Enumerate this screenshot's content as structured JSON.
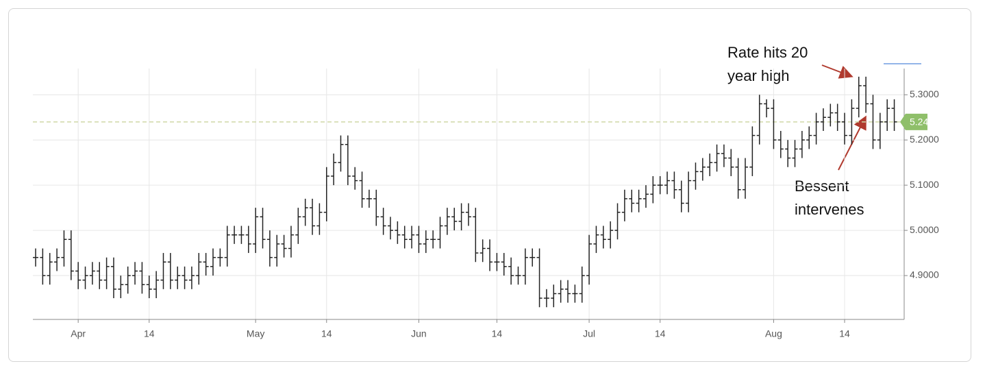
{
  "chart_data": {
    "type": "ohlc",
    "categories": [
      null,
      null,
      null,
      null,
      null,
      null,
      "Apr",
      null,
      null,
      null,
      null,
      null,
      null,
      null,
      null,
      null,
      "14",
      null,
      null,
      null,
      null,
      null,
      null,
      null,
      null,
      null,
      null,
      null,
      null,
      null,
      null,
      "May",
      null,
      null,
      null,
      null,
      null,
      null,
      null,
      null,
      null,
      "14",
      null,
      null,
      null,
      null,
      null,
      null,
      null,
      null,
      null,
      null,
      null,
      null,
      "Jun",
      null,
      null,
      null,
      null,
      null,
      null,
      null,
      null,
      null,
      null,
      "14",
      null,
      null,
      null,
      null,
      null,
      null,
      null,
      null,
      null,
      null,
      null,
      null,
      "Jul",
      null,
      null,
      null,
      null,
      null,
      null,
      null,
      null,
      null,
      "14",
      null,
      null,
      null,
      null,
      null,
      null,
      null,
      null,
      null,
      null,
      null,
      null,
      null,
      null,
      null,
      "Aug",
      null,
      null,
      null,
      null,
      null,
      null,
      null,
      null,
      null,
      "14",
      null,
      null,
      null,
      null,
      null,
      null,
      null
    ],
    "open": [
      4.94,
      4.94,
      4.9,
      4.93,
      4.94,
      4.98,
      4.91,
      4.89,
      4.9,
      4.91,
      4.89,
      4.92,
      4.87,
      4.88,
      4.9,
      4.91,
      4.88,
      4.87,
      4.89,
      4.93,
      4.89,
      4.9,
      4.89,
      4.9,
      4.93,
      4.92,
      4.94,
      4.94,
      4.99,
      4.99,
      4.99,
      4.97,
      5.03,
      4.98,
      4.94,
      4.97,
      4.96,
      4.99,
      5.03,
      5.05,
      5.01,
      5.04,
      5.12,
      5.15,
      5.19,
      5.12,
      5.11,
      5.07,
      5.07,
      5.03,
      5.01,
      5.0,
      4.99,
      4.98,
      4.99,
      4.97,
      4.98,
      4.98,
      5.01,
      5.03,
      5.02,
      5.04,
      5.03,
      4.95,
      4.96,
      4.93,
      4.93,
      4.92,
      4.9,
      4.9,
      4.94,
      4.94,
      4.85,
      4.85,
      4.86,
      4.87,
      4.86,
      4.86,
      4.9,
      4.97,
      4.99,
      4.98,
      5.0,
      5.04,
      5.07,
      5.06,
      5.07,
      5.08,
      5.1,
      5.1,
      5.11,
      5.09,
      5.06,
      5.11,
      5.13,
      5.14,
      5.15,
      5.17,
      5.16,
      5.14,
      5.09,
      5.14,
      5.21,
      5.28,
      5.27,
      5.2,
      5.18,
      5.16,
      5.18,
      5.2,
      5.21,
      5.24,
      5.25,
      5.26,
      5.24,
      5.21,
      5.27,
      5.32,
      5.28,
      5.2,
      5.24,
      5.27
    ],
    "high": [
      4.96,
      4.96,
      4.95,
      4.96,
      5.0,
      5.0,
      4.93,
      4.92,
      4.93,
      4.93,
      4.94,
      4.94,
      4.9,
      4.92,
      4.93,
      4.93,
      4.9,
      4.91,
      4.95,
      4.95,
      4.92,
      4.92,
      4.92,
      4.95,
      4.95,
      4.96,
      4.96,
      5.01,
      5.01,
      5.01,
      5.01,
      5.05,
      5.05,
      5.0,
      4.99,
      4.99,
      5.01,
      5.05,
      5.07,
      5.07,
      5.06,
      5.14,
      5.17,
      5.21,
      5.21,
      5.14,
      5.13,
      5.09,
      5.09,
      5.05,
      5.03,
      5.02,
      5.01,
      5.01,
      5.01,
      5.0,
      5.0,
      5.03,
      5.05,
      5.05,
      5.06,
      5.06,
      5.05,
      4.98,
      4.98,
      4.95,
      4.95,
      4.94,
      4.92,
      4.96,
      4.96,
      4.96,
      4.87,
      4.88,
      4.89,
      4.89,
      4.88,
      4.92,
      4.99,
      5.01,
      5.01,
      5.02,
      5.06,
      5.09,
      5.09,
      5.09,
      5.1,
      5.12,
      5.12,
      5.13,
      5.13,
      5.11,
      5.13,
      5.15,
      5.16,
      5.17,
      5.19,
      5.19,
      5.18,
      5.16,
      5.16,
      5.23,
      5.3,
      5.29,
      5.29,
      5.22,
      5.2,
      5.2,
      5.22,
      5.23,
      5.26,
      5.27,
      5.28,
      5.28,
      5.26,
      5.29,
      5.34,
      5.34,
      5.3,
      5.26,
      5.29,
      5.29
    ],
    "low": [
      4.92,
      4.88,
      4.88,
      4.91,
      4.92,
      4.89,
      4.87,
      4.87,
      4.88,
      4.87,
      4.87,
      4.85,
      4.85,
      4.86,
      4.88,
      4.86,
      4.85,
      4.85,
      4.87,
      4.87,
      4.87,
      4.87,
      4.87,
      4.88,
      4.9,
      4.9,
      4.92,
      4.92,
      4.97,
      4.97,
      4.95,
      4.95,
      4.96,
      4.92,
      4.92,
      4.94,
      4.94,
      4.97,
      5.01,
      4.99,
      4.99,
      5.02,
      5.1,
      5.13,
      5.1,
      5.09,
      5.05,
      5.05,
      5.01,
      4.99,
      4.98,
      4.97,
      4.96,
      4.96,
      4.95,
      4.95,
      4.96,
      4.96,
      4.99,
      5.0,
      5.0,
      5.01,
      4.93,
      4.93,
      4.91,
      4.91,
      4.9,
      4.88,
      4.88,
      4.88,
      4.92,
      4.83,
      4.83,
      4.83,
      4.84,
      4.84,
      4.84,
      4.84,
      4.88,
      4.95,
      4.96,
      4.96,
      4.98,
      5.02,
      5.04,
      5.04,
      5.05,
      5.06,
      5.08,
      5.08,
      5.07,
      5.04,
      5.04,
      5.09,
      5.11,
      5.12,
      5.13,
      5.14,
      5.12,
      5.07,
      5.07,
      5.12,
      5.19,
      5.25,
      5.18,
      5.16,
      5.14,
      5.14,
      5.16,
      5.18,
      5.19,
      5.22,
      5.23,
      5.22,
      5.19,
      5.19,
      5.25,
      5.26,
      5.18,
      5.18,
      5.22,
      5.22
    ],
    "close": [
      4.94,
      4.9,
      4.93,
      4.94,
      4.98,
      4.91,
      4.89,
      4.9,
      4.91,
      4.89,
      4.92,
      4.87,
      4.88,
      4.9,
      4.91,
      4.88,
      4.87,
      4.89,
      4.93,
      4.89,
      4.9,
      4.89,
      4.9,
      4.93,
      4.92,
      4.94,
      4.94,
      4.99,
      4.99,
      4.99,
      4.97,
      5.03,
      4.98,
      4.94,
      4.97,
      4.96,
      4.99,
      5.03,
      5.05,
      5.01,
      5.04,
      5.12,
      5.15,
      5.19,
      5.12,
      5.11,
      5.07,
      5.07,
      5.03,
      5.01,
      5.0,
      4.99,
      4.98,
      4.99,
      4.97,
      4.98,
      4.98,
      5.01,
      5.03,
      5.02,
      5.04,
      5.03,
      4.95,
      4.96,
      4.93,
      4.93,
      4.92,
      4.9,
      4.9,
      4.94,
      4.94,
      4.85,
      4.85,
      4.86,
      4.87,
      4.86,
      4.86,
      4.9,
      4.97,
      4.99,
      4.98,
      5.0,
      5.04,
      5.07,
      5.06,
      5.07,
      5.08,
      5.1,
      5.1,
      5.11,
      5.09,
      5.06,
      5.11,
      5.13,
      5.14,
      5.15,
      5.17,
      5.16,
      5.14,
      5.09,
      5.14,
      5.21,
      5.28,
      5.27,
      5.2,
      5.18,
      5.16,
      5.18,
      5.2,
      5.21,
      5.24,
      5.25,
      5.26,
      5.24,
      5.21,
      5.27,
      5.32,
      5.28,
      5.2,
      5.24,
      5.27,
      5.24
    ],
    "color": "#222222",
    "ylim": [
      4.803,
      5.358
    ],
    "yticks": [
      {
        "value": 4.9,
        "label": "4.9000"
      },
      {
        "value": 5.0,
        "label": "5.0000"
      },
      {
        "value": 5.1,
        "label": "5.1000"
      },
      {
        "value": 5.2,
        "label": "5.2000"
      },
      {
        "value": 5.3,
        "label": "5.3000"
      }
    ],
    "grid": true,
    "last_price": {
      "value": 5.24,
      "label": "5.2400",
      "color": "#8fbf6a"
    },
    "annotations": [
      {
        "lines": [
          "Rate hits 20",
          "year high"
        ]
      },
      {
        "lines": [
          "Bessent",
          "intervenes"
        ]
      }
    ]
  }
}
